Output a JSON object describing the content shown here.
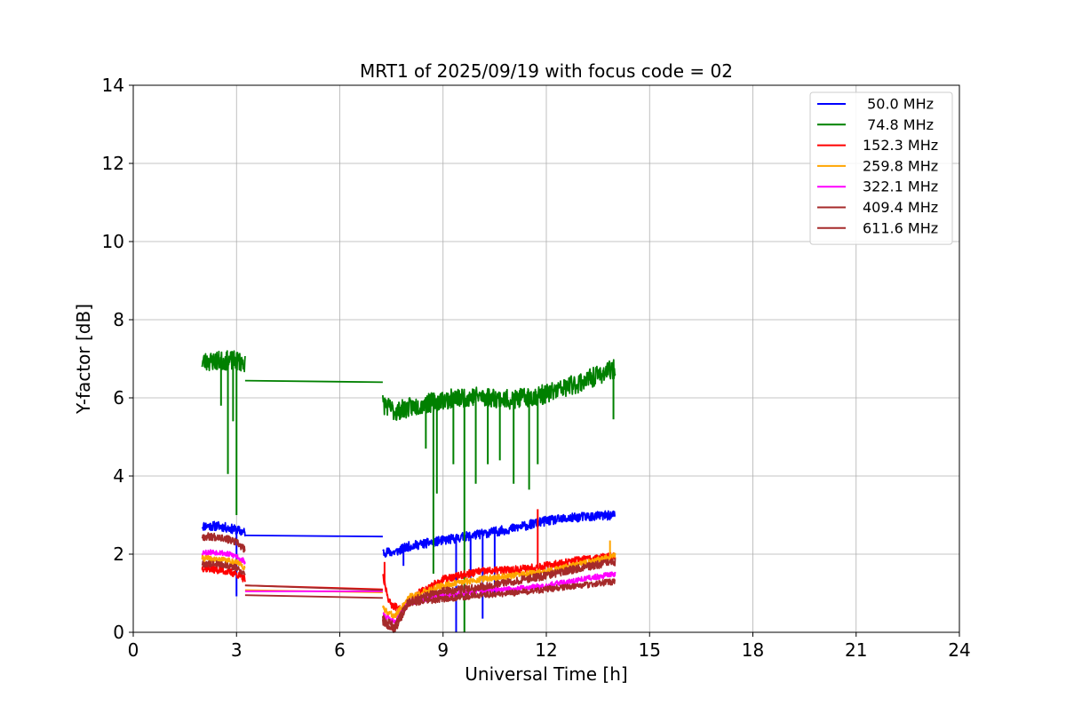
{
  "chart_data": {
    "type": "line",
    "title": "MRT1 of 2025/09/19 with focus code = 02",
    "xlabel": "Universal Time [h]",
    "ylabel": "Y-factor [dB]",
    "xlim": [
      0,
      24
    ],
    "ylim": [
      0,
      14
    ],
    "xticks": [
      0,
      3,
      6,
      9,
      12,
      15,
      18,
      21,
      24
    ],
    "yticks": [
      0,
      2,
      4,
      6,
      8,
      10,
      12,
      14
    ],
    "grid": true,
    "legend_position": "top-right",
    "series": [
      {
        "name": " 50.0 MHz",
        "color": "#0000ff",
        "noise": 0.12,
        "seed": 11,
        "segments": [
          [
            [
              2.0,
              2.72
            ],
            [
              2.5,
              2.72
            ],
            [
              3.0,
              2.62
            ],
            [
              3.25,
              2.55
            ]
          ],
          [
            [
              3.25,
              2.48
            ],
            [
              7.25,
              2.45
            ]
          ],
          [
            [
              7.25,
              2.05
            ],
            [
              7.6,
              2.05
            ],
            [
              8.0,
              2.2
            ],
            [
              9.0,
              2.35
            ],
            [
              10.0,
              2.5
            ],
            [
              11.0,
              2.65
            ],
            [
              12.0,
              2.85
            ],
            [
              13.0,
              2.95
            ],
            [
              14.0,
              3.0
            ]
          ]
        ],
        "spikes": [
          [
            3.0,
            0.92
          ],
          [
            7.85,
            1.7
          ],
          [
            9.38,
            0.0
          ],
          [
            9.8,
            1.3
          ],
          [
            10.15,
            0.35
          ],
          [
            10.5,
            1.0
          ]
        ]
      },
      {
        "name": " 74.8 MHz",
        "color": "#008000",
        "noise": 0.25,
        "seed": 23,
        "segments": [
          [
            [
              2.0,
              6.92
            ],
            [
              2.5,
              6.95
            ],
            [
              3.0,
              6.95
            ],
            [
              3.25,
              6.9
            ]
          ],
          [
            [
              3.25,
              6.44
            ],
            [
              7.25,
              6.4
            ]
          ],
          [
            [
              7.25,
              5.85
            ],
            [
              7.6,
              5.65
            ],
            [
              8.0,
              5.75
            ],
            [
              9.0,
              5.95
            ],
            [
              10.0,
              6.05
            ],
            [
              11.0,
              5.95
            ],
            [
              12.0,
              6.1
            ],
            [
              13.0,
              6.4
            ],
            [
              14.0,
              6.75
            ]
          ]
        ],
        "spikes": [
          [
            2.55,
            5.8
          ],
          [
            2.75,
            4.05
          ],
          [
            2.9,
            5.4
          ],
          [
            3.0,
            3.0
          ],
          [
            8.5,
            4.7
          ],
          [
            8.72,
            1.5
          ],
          [
            8.82,
            3.55
          ],
          [
            9.3,
            4.3
          ],
          [
            9.62,
            0.0
          ],
          [
            9.95,
            3.8
          ],
          [
            10.3,
            4.3
          ],
          [
            10.65,
            4.4
          ],
          [
            11.05,
            3.8
          ],
          [
            11.5,
            3.65
          ],
          [
            11.75,
            4.3
          ],
          [
            13.95,
            5.45
          ]
        ]
      },
      {
        "name": "152.3 MHz",
        "color": "#ff0000",
        "noise": 0.1,
        "seed": 37,
        "segments": [
          [
            [
              2.0,
              1.65
            ],
            [
              2.5,
              1.6
            ],
            [
              3.0,
              1.5
            ],
            [
              3.25,
              1.35
            ]
          ],
          [
            [
              3.25,
              1.2
            ],
            [
              7.25,
              1.1
            ]
          ],
          [
            [
              7.25,
              1.4
            ],
            [
              7.45,
              0.75
            ],
            [
              7.8,
              0.55
            ],
            [
              8.3,
              1.0
            ],
            [
              9.0,
              1.35
            ],
            [
              10.0,
              1.55
            ],
            [
              11.0,
              1.6
            ],
            [
              12.0,
              1.7
            ],
            [
              13.0,
              1.85
            ],
            [
              14.0,
              1.95
            ]
          ]
        ],
        "spikes": [
          [
            7.3,
            1.8
          ],
          [
            11.75,
            3.15
          ]
        ]
      },
      {
        "name": "259.8 MHz",
        "color": "#ffa500",
        "noise": 0.08,
        "seed": 41,
        "segments": [
          [
            [
              2.0,
              1.9
            ],
            [
              2.5,
              1.85
            ],
            [
              3.0,
              1.8
            ],
            [
              3.25,
              1.65
            ]
          ],
          [
            [
              3.25,
              1.08
            ],
            [
              7.25,
              1.02
            ]
          ],
          [
            [
              7.25,
              0.6
            ],
            [
              7.6,
              0.4
            ],
            [
              8.0,
              0.9
            ],
            [
              9.0,
              1.2
            ],
            [
              10.0,
              1.35
            ],
            [
              11.0,
              1.45
            ],
            [
              12.0,
              1.55
            ],
            [
              13.0,
              1.75
            ],
            [
              14.0,
              1.95
            ]
          ]
        ],
        "spikes": [
          [
            13.85,
            2.35
          ]
        ]
      },
      {
        "name": "322.1 MHz",
        "color": "#ff00ff",
        "noise": 0.07,
        "seed": 53,
        "segments": [
          [
            [
              2.0,
              2.05
            ],
            [
              2.5,
              2.05
            ],
            [
              3.0,
              1.95
            ],
            [
              3.25,
              1.8
            ]
          ],
          [
            [
              3.25,
              1.05
            ],
            [
              7.25,
              1.05
            ]
          ],
          [
            [
              7.25,
              0.45
            ],
            [
              7.6,
              0.25
            ],
            [
              8.0,
              0.75
            ],
            [
              9.0,
              0.95
            ],
            [
              10.0,
              1.05
            ],
            [
              11.0,
              1.1
            ],
            [
              12.0,
              1.2
            ],
            [
              13.0,
              1.35
            ],
            [
              14.0,
              1.5
            ]
          ]
        ],
        "spikes": []
      },
      {
        "name": "409.4 MHz",
        "color": "#a52a2a",
        "noise": 0.1,
        "seed": 67,
        "segments": [
          [
            [
              2.0,
              2.45
            ],
            [
              2.5,
              2.45
            ],
            [
              3.0,
              2.3
            ],
            [
              3.25,
              2.1
            ]
          ],
          [
            [
              3.25,
              1.2
            ],
            [
              7.25,
              1.08
            ]
          ],
          [
            [
              7.25,
              0.35
            ],
            [
              7.6,
              0.15
            ],
            [
              8.0,
              0.8
            ],
            [
              9.0,
              1.05
            ],
            [
              10.0,
              1.15
            ],
            [
              11.0,
              1.3
            ],
            [
              12.0,
              1.45
            ],
            [
              13.0,
              1.65
            ],
            [
              14.0,
              1.8
            ]
          ]
        ],
        "spikes": []
      },
      {
        "name": "611.6 MHz",
        "color": "#a52a2a",
        "noise": 0.08,
        "seed": 79,
        "segments": [
          [
            [
              2.0,
              1.75
            ],
            [
              2.5,
              1.75
            ],
            [
              3.0,
              1.65
            ],
            [
              3.25,
              1.5
            ]
          ],
          [
            [
              3.25,
              0.95
            ],
            [
              7.25,
              0.88
            ]
          ],
          [
            [
              7.25,
              0.25
            ],
            [
              7.6,
              0.05
            ],
            [
              8.0,
              0.75
            ],
            [
              9.0,
              0.85
            ],
            [
              10.0,
              0.95
            ],
            [
              11.0,
              1.0
            ],
            [
              12.0,
              1.1
            ],
            [
              13.0,
              1.2
            ],
            [
              14.0,
              1.3
            ]
          ]
        ],
        "spikes": []
      }
    ]
  }
}
